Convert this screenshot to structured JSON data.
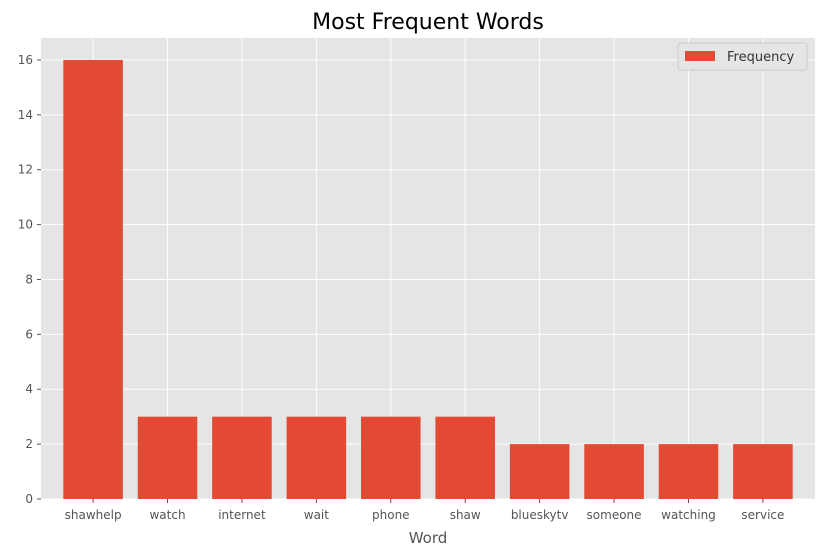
{
  "chart_data": {
    "type": "bar",
    "title": "Most Frequent Words",
    "xlabel": "Word",
    "ylabel": "",
    "categories": [
      "shawhelp",
      "watch",
      "internet",
      "wait",
      "phone",
      "shaw",
      "blueskytv",
      "someone",
      "watching",
      "service"
    ],
    "series": [
      {
        "name": "Frequency",
        "values": [
          16,
          3,
          3,
          3,
          3,
          3,
          2,
          2,
          2,
          2
        ]
      }
    ],
    "ylim": [
      0,
      16.8
    ],
    "yticks": [
      0,
      2,
      4,
      6,
      8,
      10,
      12,
      14,
      16
    ],
    "grid": true,
    "legend_position": "top-right",
    "colors": {
      "bar": "#E24A33",
      "plot_background": "#E5E5E5",
      "grid": "#FFFFFF",
      "text": "#555555",
      "title": "#000000"
    }
  }
}
